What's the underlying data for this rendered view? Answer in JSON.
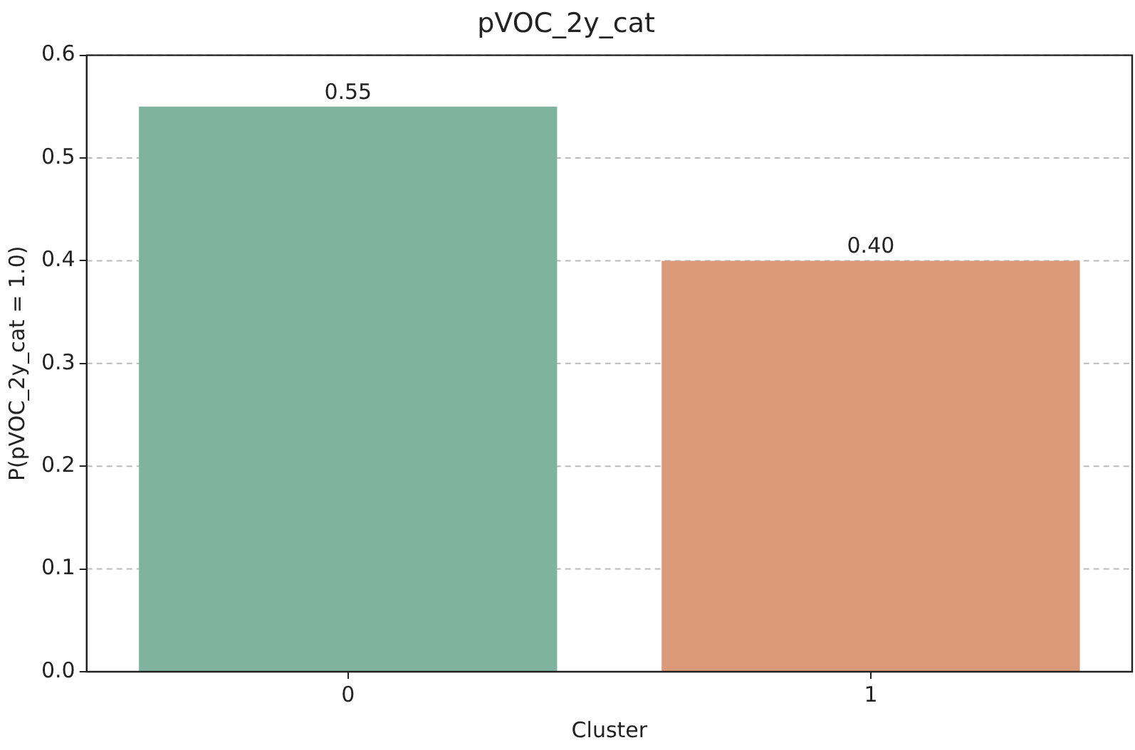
{
  "chart_data": {
    "type": "bar",
    "title": "pVOC_2y_cat",
    "xlabel": "Cluster",
    "ylabel": "P(pVOC_2y_cat = 1.0)",
    "categories": [
      "0",
      "1"
    ],
    "values": [
      0.55,
      0.4
    ],
    "colors": [
      "#7fb3a0",
      "#db9a7a"
    ],
    "value_labels": [
      "0.55",
      "0.40"
    ],
    "ylim": [
      0,
      0.6
    ],
    "yticks": [
      {
        "value": 0,
        "label": "0.0"
      },
      0.1,
      0.2,
      0.3,
      0.4,
      0.5,
      0.6
    ],
    "grid": "y",
    "legend": false
  }
}
